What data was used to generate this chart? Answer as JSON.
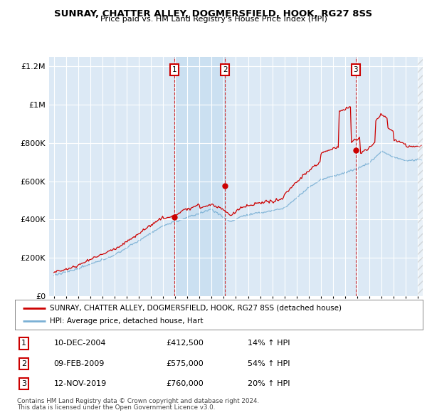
{
  "title": "SUNRAY, CHATTER ALLEY, DOGMERSFIELD, HOOK, RG27 8SS",
  "subtitle": "Price paid vs. HM Land Registry's House Price Index (HPI)",
  "legend_line1": "SUNRAY, CHATTER ALLEY, DOGMERSFIELD, HOOK, RG27 8SS (detached house)",
  "legend_line2": "HPI: Average price, detached house, Hart",
  "footnote1": "Contains HM Land Registry data © Crown copyright and database right 2024.",
  "footnote2": "This data is licensed under the Open Government Licence v3.0.",
  "transactions": [
    {
      "num": 1,
      "date": "10-DEC-2004",
      "price": "£412,500",
      "change": "14% ↑ HPI",
      "x_year": 2004.94,
      "y_price": 412500
    },
    {
      "num": 2,
      "date": "09-FEB-2009",
      "price": "£575,000",
      "change": "54% ↑ HPI",
      "x_year": 2009.11,
      "y_price": 575000
    },
    {
      "num": 3,
      "date": "12-NOV-2019",
      "price": "£760,000",
      "change": "20% ↑ HPI",
      "x_year": 2019.87,
      "y_price": 760000
    }
  ],
  "ylim": [
    0,
    1250000
  ],
  "xlim_start": 1994.6,
  "xlim_end": 2025.4,
  "background_color": "#ffffff",
  "plot_bg_color": "#dce9f5",
  "grid_color": "#ffffff",
  "red_color": "#cc0000",
  "blue_color": "#7ab0d4",
  "shaded_color": "#c5ddf0"
}
